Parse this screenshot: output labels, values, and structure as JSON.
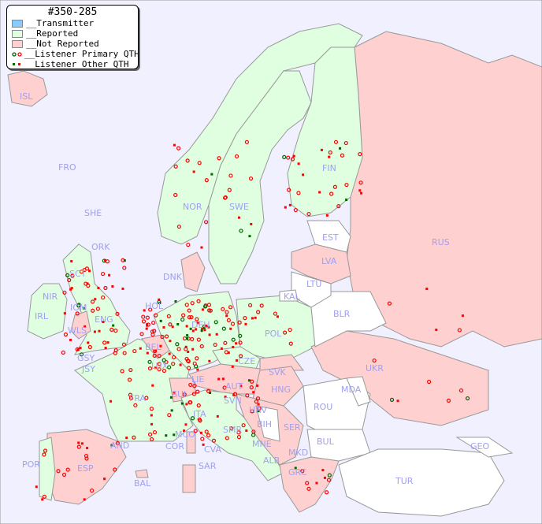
{
  "title": "#350-285",
  "legend": [
    {
      "label": "__Transmitter",
      "color": "#88ccff"
    },
    {
      "label": "__Reported",
      "color": "#e0ffe0"
    },
    {
      "label": "__Not Reported",
      "color": "#ffd0d0"
    },
    {
      "label": "__Listener Primary QTH",
      "marker": "circle"
    },
    {
      "label": "__Listener Other QTH",
      "marker": "square"
    }
  ],
  "colors": {
    "sea": "#f0f0ff",
    "reported": "#e0ffe0",
    "not_reported": "#ffd0d0",
    "no_data": "#ffffff",
    "label": "#a0a0f0",
    "listener": "#ff0000",
    "listener_alt": "#006600"
  },
  "countries": {
    "ISL": "ISL",
    "FRO": "FRO",
    "SHE": "SHE",
    "ORK": "ORK",
    "SCT": "SCT",
    "NIR": "NIR",
    "IRL": "IRL",
    "IOM": "IOM",
    "WLS": "WLS",
    "ENG": "ENG",
    "GSY": "GSY",
    "JSY": "JSY",
    "NOR": "NOR",
    "SWE": "SWE",
    "FIN": "FIN",
    "EST": "EST",
    "LVA": "LVA",
    "LTU": "LTU",
    "KAL": "KAL",
    "RUS": "RUS",
    "BLR": "BLR",
    "DNK": "DNK",
    "HOL": "HOL",
    "BEL": "BEL",
    "LUX": "LUX",
    "DEU": "DEU",
    "POL": "POL",
    "CZE": "CZE",
    "SVK": "SVK",
    "HNG": "HNG",
    "AUT": "AUT",
    "LIE": "LIE",
    "SUI": "SUI",
    "FRA": "FRA",
    "SVN": "SVN",
    "HRV": "HRV",
    "ITA": "ITA",
    "SMR": "SMR",
    "BIH": "BIH",
    "SER": "SER",
    "MNE": "MNE",
    "ALB": "ALB",
    "MKD": "MKD",
    "GRC": "GRC",
    "BUL": "BUL",
    "ROU": "ROU",
    "MDA": "MDA",
    "UKR": "UKR",
    "TUR": "TUR",
    "GEO": "GEO",
    "MCO": "MCO",
    "COR": "COR",
    "CVA": "CVA",
    "SAR": "SAR",
    "AND": "AND",
    "POR": "POR",
    "ESP": "ESP",
    "BAL": "BAL"
  }
}
